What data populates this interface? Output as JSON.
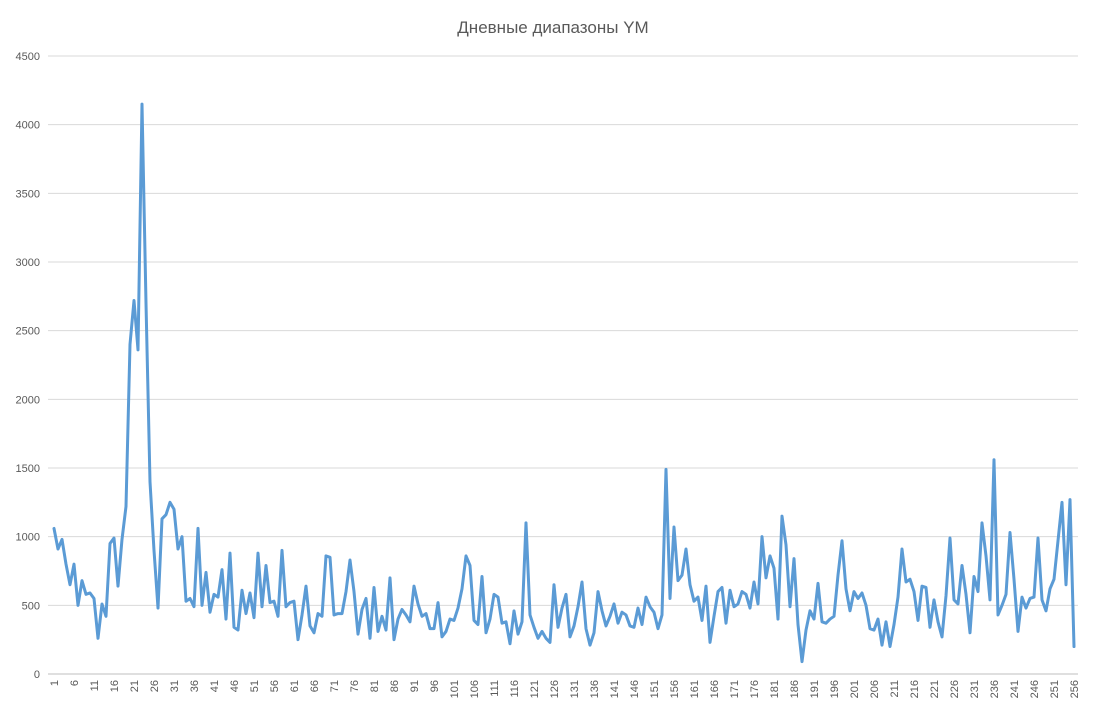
{
  "chart_data": {
    "type": "line",
    "title": "Дневные диапазоны YM",
    "categories": [
      "1",
      null,
      null,
      null,
      null,
      "6",
      null,
      null,
      null,
      null,
      "11",
      null,
      null,
      null,
      null,
      "16",
      null,
      null,
      null,
      null,
      "21",
      null,
      null,
      null,
      null,
      "26",
      null,
      null,
      null,
      null,
      "31",
      null,
      null,
      null,
      null,
      "36",
      null,
      null,
      null,
      null,
      "41",
      null,
      null,
      null,
      null,
      "46",
      null,
      null,
      null,
      null,
      "51",
      null,
      null,
      null,
      null,
      "56",
      null,
      null,
      null,
      null,
      "61",
      null,
      null,
      null,
      null,
      "66",
      null,
      null,
      null,
      null,
      "71",
      null,
      null,
      null,
      null,
      "76",
      null,
      null,
      null,
      null,
      "81",
      null,
      null,
      null,
      null,
      "86",
      null,
      null,
      null,
      null,
      "91",
      null,
      null,
      null,
      null,
      "96",
      null,
      null,
      null,
      null,
      "101",
      null,
      null,
      null,
      null,
      "106",
      null,
      null,
      null,
      null,
      "111",
      null,
      null,
      null,
      null,
      "116",
      null,
      null,
      null,
      null,
      "121",
      null,
      null,
      null,
      null,
      "126",
      null,
      null,
      null,
      null,
      "131",
      null,
      null,
      null,
      null,
      "136",
      null,
      null,
      null,
      null,
      "141",
      null,
      null,
      null,
      null,
      "146",
      null,
      null,
      null,
      null,
      "151",
      null,
      null,
      null,
      null,
      "156",
      null,
      null,
      null,
      null,
      "161",
      null,
      null,
      null,
      null,
      "166",
      null,
      null,
      null,
      null,
      "171",
      null,
      null,
      null,
      null,
      "176",
      null,
      null,
      null,
      null,
      "181",
      null,
      null,
      null,
      null,
      "186",
      null,
      null,
      null,
      null,
      "191",
      null,
      null,
      null,
      null,
      "196",
      null,
      null,
      null,
      null,
      "201",
      null,
      null,
      null,
      null,
      "206",
      null,
      null,
      null,
      null,
      "211",
      null,
      null,
      null,
      null,
      "216",
      null,
      null,
      null,
      null,
      "221",
      null,
      null,
      null,
      null,
      "226",
      null,
      null,
      null,
      null,
      "231",
      null,
      null,
      null,
      null,
      "236",
      null,
      null,
      null,
      null,
      "241",
      null,
      null,
      null,
      null,
      "246",
      null,
      null,
      null,
      null,
      "251",
      null,
      null,
      null,
      null,
      "256"
    ],
    "values": [
      1060,
      910,
      980,
      800,
      650,
      800,
      500,
      680,
      580,
      590,
      550,
      260,
      510,
      420,
      950,
      990,
      640,
      980,
      1220,
      2400,
      2720,
      2360,
      4150,
      2700,
      1400,
      900,
      480,
      1130,
      1160,
      1250,
      1200,
      910,
      1000,
      530,
      550,
      490,
      1060,
      500,
      740,
      450,
      580,
      560,
      760,
      400,
      880,
      340,
      320,
      610,
      440,
      590,
      410,
      880,
      490,
      790,
      520,
      530,
      420,
      900,
      490,
      520,
      530,
      250,
      430,
      640,
      350,
      300,
      440,
      420,
      860,
      850,
      430,
      440,
      440,
      600,
      830,
      600,
      290,
      470,
      550,
      260,
      630,
      310,
      420,
      320,
      700,
      250,
      400,
      470,
      430,
      380,
      640,
      510,
      420,
      440,
      330,
      330,
      520,
      270,
      310,
      400,
      390,
      480,
      620,
      860,
      790,
      390,
      360,
      710,
      300,
      400,
      580,
      560,
      370,
      380,
      220,
      460,
      290,
      380,
      1100,
      430,
      340,
      260,
      310,
      260,
      230,
      650,
      340,
      480,
      580,
      270,
      350,
      490,
      670,
      330,
      210,
      300,
      600,
      460,
      350,
      420,
      510,
      370,
      450,
      430,
      350,
      340,
      480,
      360,
      560,
      490,
      450,
      330,
      430,
      1490,
      550,
      1070,
      680,
      720,
      910,
      650,
      530,
      560,
      390,
      640,
      230,
      420,
      600,
      630,
      370,
      610,
      490,
      510,
      600,
      580,
      480,
      670,
      510,
      1000,
      700,
      860,
      770,
      400,
      1150,
      940,
      490,
      840,
      360,
      90,
      320,
      460,
      400,
      660,
      380,
      370,
      400,
      420,
      720,
      970,
      620,
      460,
      600,
      550,
      590,
      500,
      330,
      320,
      400,
      210,
      380,
      200,
      360,
      560,
      910,
      670,
      690,
      600,
      390,
      640,
      630,
      340,
      540,
      380,
      270,
      570,
      990,
      540,
      510,
      790,
      580,
      300,
      710,
      600,
      1100,
      860,
      540,
      1560,
      430,
      500,
      580,
      1030,
      690,
      310,
      560,
      480,
      550,
      560,
      990,
      540,
      460,
      620,
      690,
      970,
      1250,
      650,
      1270,
      200
    ],
    "color": "#5b9bd5",
    "ylim": [
      0,
      4500
    ],
    "yticks": [
      0,
      500,
      1000,
      1500,
      2000,
      2500,
      3000,
      3500,
      4000,
      4500
    ],
    "grid": true
  }
}
